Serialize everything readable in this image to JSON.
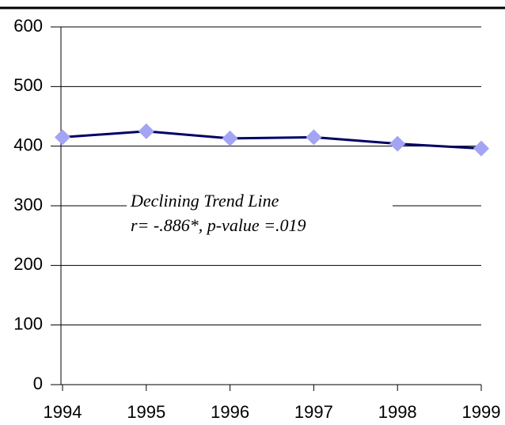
{
  "chart_data": {
    "type": "line",
    "categories": [
      "1994",
      "1995",
      "1996",
      "1997",
      "1998",
      "1999"
    ],
    "series": [
      {
        "color": "#000066",
        "marker_color": "#a4a4f4",
        "values": [
          415,
          425,
          413,
          415,
          404,
          396
        ]
      }
    ],
    "ylim": [
      0,
      600
    ],
    "yticks": [
      0,
      100,
      200,
      300,
      400,
      500,
      600
    ],
    "grid": true,
    "annotations": [
      "Declining Trend Line",
      "r= -.886*, p-value =.019"
    ]
  }
}
